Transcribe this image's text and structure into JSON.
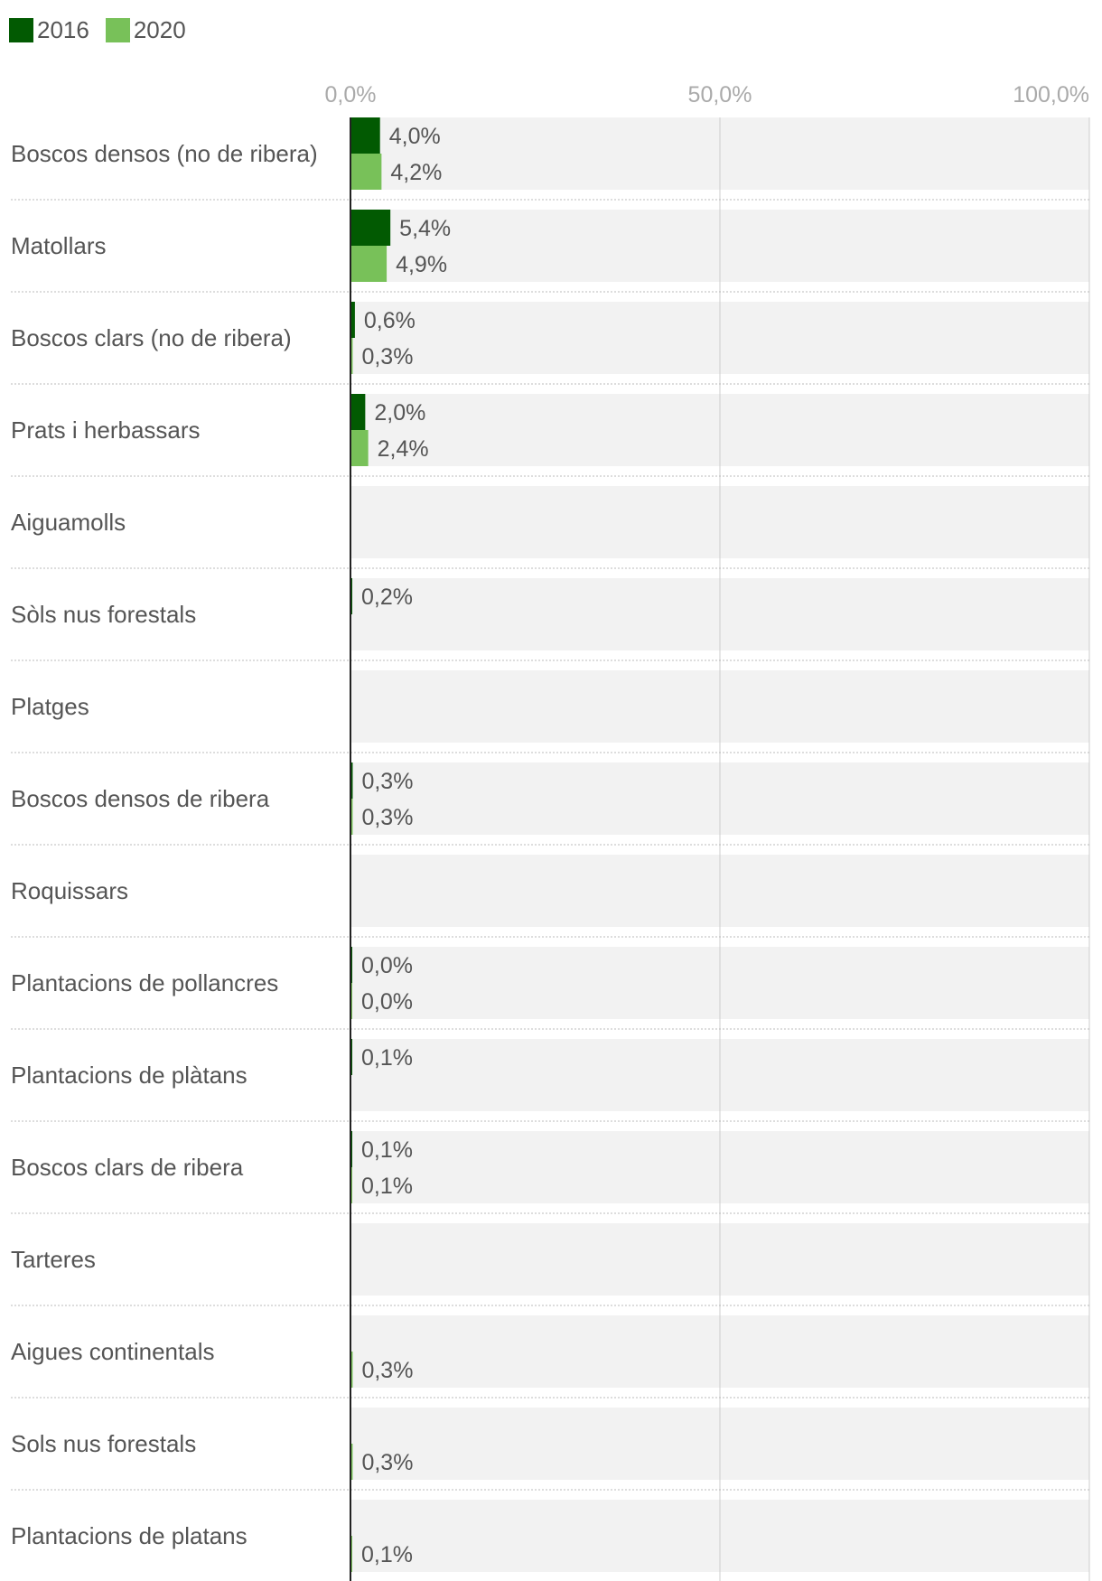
{
  "colors": {
    "series_2016": "#025a02",
    "series_2020": "#78c159",
    "row_background": "#f2f2f2",
    "gridline": "#cccccc",
    "axis_line": "#222222",
    "tick_text": "#aaaaaa",
    "label_text": "#555555",
    "separator": "#bbbbbb"
  },
  "legend": {
    "items": [
      {
        "label": "2016",
        "color": "#025a02"
      },
      {
        "label": "2020",
        "color": "#78c159"
      }
    ]
  },
  "chart_data": {
    "type": "bar",
    "orientation": "horizontal",
    "title": "",
    "xlabel": "",
    "ylabel": "",
    "xlim": [
      0,
      100
    ],
    "ticks": [
      0,
      50,
      100
    ],
    "tick_labels": [
      "0,0%",
      "50,0%",
      "100,0%"
    ],
    "categories": [
      "Boscos densos (no de ribera)",
      "Matollars",
      "Boscos clars (no de ribera)",
      "Prats i herbassars",
      "Aiguamolls",
      "Sòls nus forestals",
      "Platges",
      "Boscos densos de ribera",
      "Roquissars",
      "Plantacions de pollancres",
      "Plantacions de plàtans",
      "Boscos clars de ribera",
      "Tarteres",
      "Aigues continentals",
      "Sols nus forestals",
      "Plantacions de platans"
    ],
    "series": [
      {
        "name": "2016",
        "values": [
          4.0,
          5.4,
          0.6,
          2.0,
          null,
          0.2,
          null,
          0.3,
          null,
          0.0,
          0.1,
          0.1,
          null,
          null,
          null,
          null
        ],
        "labels": [
          "4,0%",
          "5,4%",
          "0,6%",
          "2,0%",
          null,
          "0,2%",
          null,
          "0,3%",
          null,
          "0,0%",
          "0,1%",
          "0,1%",
          null,
          null,
          null,
          null
        ]
      },
      {
        "name": "2020",
        "values": [
          4.2,
          4.9,
          0.3,
          2.4,
          null,
          null,
          null,
          0.3,
          null,
          0.0,
          null,
          0.1,
          null,
          0.3,
          0.3,
          0.1
        ],
        "labels": [
          "4,2%",
          "4,9%",
          "0,3%",
          "2,4%",
          null,
          null,
          null,
          "0,3%",
          null,
          "0,0%",
          null,
          "0,1%",
          null,
          "0,3%",
          "0,3%",
          "0,1%"
        ]
      }
    ]
  }
}
